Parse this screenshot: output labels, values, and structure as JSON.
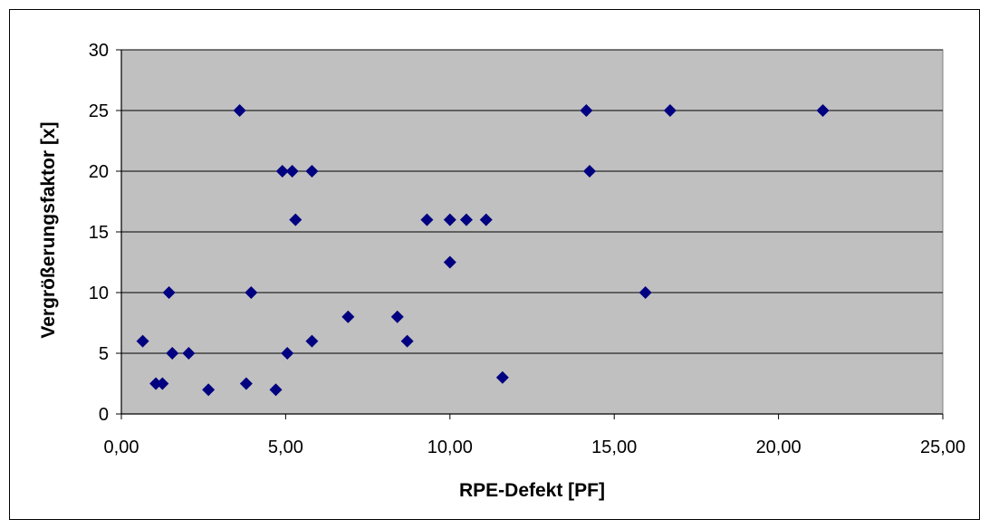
{
  "chart_data": {
    "type": "scatter",
    "xlabel": "RPE-Defekt [PF]",
    "ylabel": "Vergrößerungsfaktor [x]",
    "xlim": [
      0,
      25
    ],
    "ylim": [
      0,
      30
    ],
    "x_ticks": [
      "0,00",
      "5,00",
      "10,00",
      "15,00",
      "20,00",
      "25,00"
    ],
    "y_ticks": [
      "0",
      "5",
      "10",
      "15",
      "20",
      "25",
      "30"
    ],
    "x_tick_values": [
      0,
      5,
      10,
      15,
      20,
      25
    ],
    "y_tick_values": [
      0,
      5,
      10,
      15,
      20,
      25,
      30
    ],
    "grid": "horizontal",
    "plot_background": "#c0c0c0",
    "marker_color": "#000080",
    "marker": "diamond",
    "points": [
      {
        "x": 0.65,
        "y": 6
      },
      {
        "x": 1.05,
        "y": 2.5
      },
      {
        "x": 1.25,
        "y": 2.5
      },
      {
        "x": 1.45,
        "y": 10
      },
      {
        "x": 1.55,
        "y": 5
      },
      {
        "x": 2.05,
        "y": 5
      },
      {
        "x": 2.65,
        "y": 2
      },
      {
        "x": 3.6,
        "y": 25
      },
      {
        "x": 3.8,
        "y": 2.5
      },
      {
        "x": 3.95,
        "y": 10
      },
      {
        "x": 4.7,
        "y": 2
      },
      {
        "x": 4.9,
        "y": 20
      },
      {
        "x": 5.05,
        "y": 5
      },
      {
        "x": 5.2,
        "y": 20
      },
      {
        "x": 5.3,
        "y": 16
      },
      {
        "x": 5.8,
        "y": 20
      },
      {
        "x": 5.8,
        "y": 6
      },
      {
        "x": 6.9,
        "y": 8
      },
      {
        "x": 8.4,
        "y": 8
      },
      {
        "x": 8.7,
        "y": 6
      },
      {
        "x": 9.3,
        "y": 16
      },
      {
        "x": 10.0,
        "y": 16
      },
      {
        "x": 10.0,
        "y": 12.5
      },
      {
        "x": 10.5,
        "y": 16
      },
      {
        "x": 11.1,
        "y": 16
      },
      {
        "x": 11.6,
        "y": 3
      },
      {
        "x": 14.15,
        "y": 25
      },
      {
        "x": 14.25,
        "y": 20
      },
      {
        "x": 15.95,
        "y": 10
      },
      {
        "x": 16.7,
        "y": 25
      },
      {
        "x": 21.35,
        "y": 25
      }
    ]
  }
}
